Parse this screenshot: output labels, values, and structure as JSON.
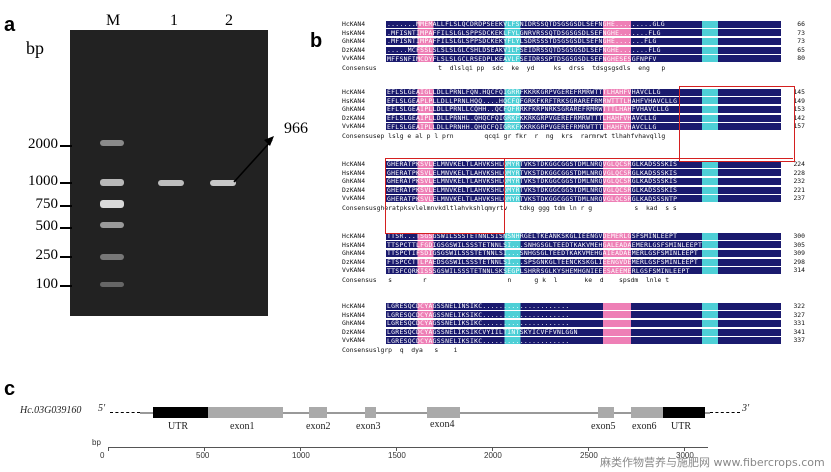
{
  "panels": {
    "a": "a",
    "b": "b",
    "c": "c"
  },
  "gel": {
    "bp_unit": "bp",
    "lanes": [
      "M",
      "1",
      "2"
    ],
    "markers": [
      "2000",
      "1000",
      "750",
      "500",
      "250",
      "100"
    ],
    "product_size": "966"
  },
  "alignment": {
    "blocks": [
      {
        "rows": [
          {
            "name": "HcKAN4",
            "seq": ".......MMEMALLFLSLQCDRDPSEEKVLFSNIDRSSQTDSGSGSDLSEFNGHE.........GLG",
            "end": "66"
          },
          {
            "name": "HsKAN4",
            "seq": ".MFISNTIMPAFFILSLGLSPPSDCKEKLFYLGNRVRSSQTDSGSGSDLSEFNGHE.......FLG",
            "end": "73"
          },
          {
            "name": "GhKAN4",
            "seq": ".MFISNTIMPAFFILSLGLSPPSDCKEKYFLYLSDRSSSTDSGSGSDLSEFNGHE.......FLG",
            "end": "73"
          },
          {
            "name": "DzKAN4",
            "seq": ".....MCFSSLSLSLSLGLCSHLDSEAKVILFSEIDRSSQTDSGSGSDLSEFNGHE.......FLG",
            "end": "65"
          },
          {
            "name": "VvKAN4",
            "seq": "MFFSNFIMCDYFLSLSLGCLRSEDPLKEAVLFSEIDRSSPTDSGSGSDLSEFNGHESESGFNPFV",
            "end": "80"
          }
        ],
        "consensus": "Consensus                t  dlslqi pp  sdc  ke  yd     ks  drss  tdsgsgsdls  eng   p"
      },
      {
        "rows": [
          {
            "name": "HcKAN4",
            "seq": "EFLSLGEAIGLLDLLPRNLFQN.HQCFQIGRRFKKRKGRPVGEREFRMRWTTTLHAHFVHAVCLLG",
            "end": "145"
          },
          {
            "name": "HsKAN4",
            "seq": "EFLSLGEAPLPLLDLLPRNLHQQ....HQCFQFGRKFKRFTRKSGRAREFRMRWTTTLHAHFVHAVCLLG",
            "end": "149"
          },
          {
            "name": "GhKAN4",
            "seq": "EFLSLGEAIPLLDLLPRNLLCQHH..QCFQFRRKFKRPNRKSGRAREFRMRWTTTLHAHFVHAVCLLG",
            "end": "153"
          },
          {
            "name": "DzKAN4",
            "seq": "EFLSLGEAIPLLDLLPRNHL.QHQCFQIGRKFKKRKGRPVGEREFRMRWTTTLHAHFVHAVCLLG",
            "end": "142"
          },
          {
            "name": "VvKAN4",
            "seq": "EFLSLGEAIPLLDLLPRNHH.QHQCFQIGRKFKKRKGRPVGEREFRMRWTTTLHAHFVHAVCLLG",
            "end": "157"
          }
        ],
        "consensus": "Consensusep lslg e al p l prn        qcqi gr fkr  r  ng  krs  rarmrwt tlhahfvhavqllg"
      },
      {
        "rows": [
          {
            "name": "HcKAN4",
            "seq": "GHERATPKSVLELMNVKELTLAHVKSHLQMYRTVKSTDKGGCGGSTDMLNRQVGLQCSRGLKADSSSKIS",
            "end": "224"
          },
          {
            "name": "HsKAN4",
            "seq": "GHERATPKSVLELMNVKELTLAHVKSHLQMYRTVKSTDKGGCGGSTDMLNRQVGLQCSRGLKADSSSKIS",
            "end": "228"
          },
          {
            "name": "GhKAN4",
            "seq": "GHERATPKSVLELMNVKELTLAHVKSHLQMYRTVKSTDKGGCGGSTDMLNRQVGLQCSRGLKADSSSKIS",
            "end": "232"
          },
          {
            "name": "DzKAN4",
            "seq": "GHERATPKSVLELMNVKELTLAHVKSHLQMYRTVKSTDKGGCGGSTDMLNRQVGLQCSRGLKADSSSKIS",
            "end": "221"
          },
          {
            "name": "VvKAN4",
            "seq": "GHERATPKSVLELMNVKELTLAHVKSHLQMYRTVKSTDKGGCGGSTDMLNRQVGLQCSRGLKADSSSNTP",
            "end": "237"
          }
        ],
        "consensus": "Consensusgheratpksvlelmnvkdltlahvkshlqmyrtv   tdkg ggg tdm ln r g           s  kad  s s"
      },
      {
        "rows": [
          {
            "name": "HcKAN4",
            "seq": "TTSR...TSGSGSWILSSSTETNNLSISNSNHRGELTKEANKSKGLIEENGVDEMERLGSFSMINLEEPT",
            "end": "300"
          },
          {
            "name": "HsKAN4",
            "seq": "TTSPCTTLFGDIGSGSWILSSSTETNNLSI...SNHGSGLTEEDTKAKVMEHGALEADAEMERLGSFSMINLEEPT",
            "end": "305"
          },
          {
            "name": "GhKAN4",
            "seq": "TTSPCTIFSDIGSGSWILSSSTETNNLSI...SNHGSGLTEEDTKAKVMEHGAIEADAEMERLGSFSMINLEEPT",
            "end": "309"
          },
          {
            "name": "DzKAN4",
            "seq": "FTSPCCTTLPAEDSGSWILSSSTETNNLSI...SPSGNKGLTEENCKSKGLIEENGVDEMERLGSFSMINLEEPT",
            "end": "298"
          },
          {
            "name": "VvKAN4",
            "seq": "TTSFCQRKISSSGSWILSSSTETNNLSKSEGPLSHRRSGLKYSHEMHGNIEEESAEEMERLGSFSMINLEEPT",
            "end": "314"
          }
        ],
        "consensus": "Consensus   s        r                     n      g k  l       ke  d    spsdm  lnle t"
      },
      {
        "rows": [
          {
            "name": "HcKAN4",
            "seq": "LGRESQCDCYAGSSNELINSIKC.....................",
            "end": "322"
          },
          {
            "name": "HsKAN4",
            "seq": "LGRESQCDCYAGSSNELIKSIKC.....................",
            "end": "327"
          },
          {
            "name": "GhKAN4",
            "seq": "LGRESQCDCYAGSSNELIKSIKC.....................",
            "end": "331"
          },
          {
            "name": "DzKAN4",
            "seq": "LGRESQCDCYAGSSNELIKSIKCVYIILTINTSKYICVFFVNLGGN",
            "end": "341"
          },
          {
            "name": "VvKAN4",
            "seq": "LGRESQCDCYAGSSNELIKSIKC.....................",
            "end": "337"
          }
        ],
        "consensus": "Consensuslgrp  q  dya   s    i"
      }
    ]
  },
  "gene": {
    "name": "Hc.03G039160",
    "five_prime": "5'",
    "three_prime": "3'",
    "features": [
      "UTR",
      "exon1",
      "exon2",
      "exon3",
      "exon4",
      "exon5",
      "exon6",
      "UTR"
    ],
    "scale_unit": "bp",
    "scale_ticks": [
      "0",
      "500",
      "1000",
      "1500",
      "2000",
      "2500",
      "3000"
    ]
  },
  "watermark": "麻类作物营养与施肥网  www.fibercrops.com",
  "colors": {
    "identity_dark": "#1a1a6e",
    "similarity_pink": "#ee7fb6",
    "similarity_cyan": "#4ecfd6",
    "highlight_box": "#d42020",
    "utr": "#000000",
    "exon": "#aaaaaa"
  }
}
